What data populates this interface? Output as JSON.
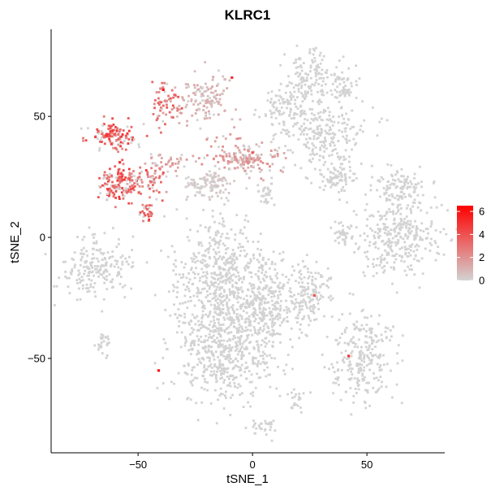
{
  "chart_data": {
    "type": "scatter",
    "title": "KLRC1",
    "xlabel": "tSNE_1",
    "ylabel": "tSNE_2",
    "xlim": [
      -88,
      84
    ],
    "ylim": [
      -89,
      86
    ],
    "x_ticks": [
      -50,
      0,
      50
    ],
    "y_ticks": [
      -50,
      0,
      50
    ],
    "grid": false,
    "legend": {
      "placement": "right",
      "type": "colorbar",
      "ticks": [
        0,
        2,
        4,
        6
      ],
      "range": [
        0,
        6.5
      ],
      "color_low": "#d3d3d3",
      "color_high": "#ff0000"
    },
    "clusters": [
      {
        "x": 25,
        "y": 66,
        "sx": 5,
        "sy": 6,
        "n": 120,
        "level": 0
      },
      {
        "x": 39,
        "y": 63,
        "sx": 3,
        "sy": 4,
        "n": 60,
        "level": 0
      },
      {
        "x": 16,
        "y": 53,
        "sx": 7,
        "sy": 5,
        "n": 110,
        "level": 0
      },
      {
        "x": 30,
        "y": 42,
        "sx": 9,
        "sy": 7,
        "n": 220,
        "level": 0
      },
      {
        "x": 37,
        "y": 25,
        "sx": 5,
        "sy": 4,
        "n": 90,
        "level": 0
      },
      {
        "x": 64,
        "y": 20,
        "sx": 6,
        "sy": 4,
        "n": 110,
        "level": 0
      },
      {
        "x": 63,
        "y": 0,
        "sx": 9,
        "sy": 8,
        "n": 320,
        "level": 0
      },
      {
        "x": 40,
        "y": 2,
        "sx": 3,
        "sy": 2,
        "n": 35,
        "level": 0
      },
      {
        "x": 49,
        "y": -50,
        "sx": 7,
        "sy": 9,
        "n": 260,
        "level": 0
      },
      {
        "x": 5,
        "y": -27,
        "sx": 9,
        "sy": 10,
        "n": 380,
        "level": 0
      },
      {
        "x": -15,
        "y": -18,
        "sx": 10,
        "sy": 14,
        "n": 520,
        "level": 0
      },
      {
        "x": -12,
        "y": -48,
        "sx": 11,
        "sy": 10,
        "n": 450,
        "level": 0
      },
      {
        "x": 25,
        "y": -23,
        "sx": 5,
        "sy": 6,
        "n": 120,
        "level": 0
      },
      {
        "x": -68,
        "y": -12,
        "sx": 8,
        "sy": 6,
        "n": 200,
        "level": 0
      },
      {
        "x": -65,
        "y": -44,
        "sx": 2,
        "sy": 3,
        "n": 25,
        "level": 0
      },
      {
        "x": 5,
        "y": -79,
        "sx": 3,
        "sy": 2,
        "n": 30,
        "level": 0
      },
      {
        "x": 19,
        "y": -68,
        "sx": 2,
        "sy": 3,
        "n": 20,
        "level": 0
      },
      {
        "x": -20,
        "y": 57,
        "sx": 6,
        "sy": 5,
        "n": 130,
        "level": 0.15
      },
      {
        "x": -4,
        "y": 33,
        "sx": 8,
        "sy": 4,
        "n": 170,
        "level": 0.25
      },
      {
        "x": -20,
        "y": 22,
        "sx": 5,
        "sy": 3,
        "n": 100,
        "level": 0.05
      },
      {
        "x": 6,
        "y": 18,
        "sx": 2,
        "sy": 3,
        "n": 30,
        "level": 0
      },
      {
        "x": -60,
        "y": 42,
        "sx": 5,
        "sy": 3,
        "n": 120,
        "level": 0.55
      },
      {
        "x": -58,
        "y": 22,
        "sx": 5,
        "sy": 4,
        "n": 150,
        "level": 0.55
      },
      {
        "x": -44,
        "y": 24,
        "sx": 4,
        "sy": 4,
        "n": 60,
        "level": 0.4
      },
      {
        "x": -39,
        "y": 55,
        "sx": 3,
        "sy": 5,
        "n": 60,
        "level": 0.45
      },
      {
        "x": -46,
        "y": 10,
        "sx": 2,
        "sy": 2,
        "n": 30,
        "level": 0.5
      },
      {
        "x": -37,
        "y": 31,
        "sx": 4,
        "sy": 2,
        "n": 30,
        "level": 0.2
      }
    ],
    "highlight_points": [
      {
        "x": -39,
        "y": 61,
        "value": 6
      },
      {
        "x": -9,
        "y": 66,
        "value": 5
      },
      {
        "x": -41,
        "y": -55,
        "value": 6
      },
      {
        "x": 42,
        "y": -49,
        "value": 5
      },
      {
        "x": -58,
        "y": 31,
        "value": 5
      },
      {
        "x": -53,
        "y": 20,
        "value": 4
      },
      {
        "x": -62,
        "y": 46,
        "value": 4
      },
      {
        "x": 27,
        "y": -24,
        "value": 4
      },
      {
        "x": 0,
        "y": 35,
        "value": 4
      }
    ]
  }
}
